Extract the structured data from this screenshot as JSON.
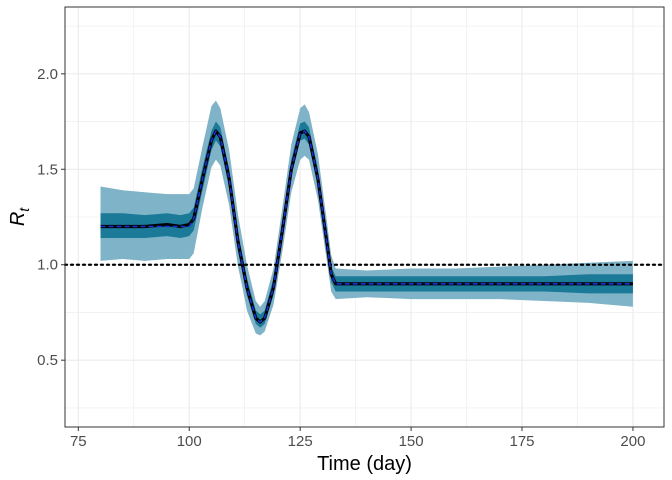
{
  "chart_data": {
    "type": "line",
    "xlabel": "Time (day)",
    "ylabel": "R",
    "ylabel_subscript": "t",
    "xlim": [
      72,
      207
    ],
    "ylim": [
      0.15,
      2.35
    ],
    "xticks": [
      75,
      100,
      125,
      150,
      175,
      200
    ],
    "yticks": [
      0.5,
      1.0,
      1.5,
      2.0
    ],
    "xtick_labels": [
      "75",
      "100",
      "125",
      "150",
      "175",
      "200"
    ],
    "ytick_labels": [
      "0.5",
      "1.0",
      "1.5",
      "2.0"
    ],
    "grid": true,
    "reference_line": {
      "y": 1.0,
      "style": "dotted",
      "color": "#000000"
    },
    "colors": {
      "outer_band": "#7fb3c8",
      "inner_band": "#1b7a98",
      "estimate_line": "#000000",
      "true_line": "#1a2fd6",
      "panel_border": "#333333",
      "grid": "#ebebeb"
    },
    "series": [
      {
        "role": "estimate_with_bands",
        "x": [
          80,
          85,
          90,
          95,
          98,
          100,
          101,
          103,
          105,
          106,
          107,
          109,
          111,
          112,
          113,
          115,
          116,
          117,
          119,
          121,
          123,
          125,
          126,
          127,
          129,
          131,
          132,
          133,
          140,
          150,
          160,
          170,
          180,
          190,
          200
        ],
        "y": [
          1.2,
          1.2,
          1.2,
          1.21,
          1.2,
          1.21,
          1.24,
          1.45,
          1.65,
          1.7,
          1.67,
          1.45,
          1.12,
          1.0,
          0.88,
          0.72,
          0.7,
          0.72,
          0.88,
          1.18,
          1.5,
          1.69,
          1.7,
          1.67,
          1.45,
          1.12,
          0.95,
          0.9,
          0.9,
          0.9,
          0.9,
          0.9,
          0.9,
          0.9,
          0.9
        ],
        "lower95": [
          1.02,
          1.03,
          1.02,
          1.03,
          1.03,
          1.03,
          1.06,
          1.3,
          1.51,
          1.55,
          1.52,
          1.31,
          0.99,
          0.88,
          0.76,
          0.64,
          0.63,
          0.65,
          0.79,
          1.07,
          1.38,
          1.55,
          1.57,
          1.55,
          1.34,
          1.02,
          0.86,
          0.82,
          0.83,
          0.82,
          0.82,
          0.82,
          0.81,
          0.8,
          0.78
        ],
        "upper95": [
          1.41,
          1.39,
          1.38,
          1.37,
          1.37,
          1.37,
          1.4,
          1.62,
          1.83,
          1.86,
          1.82,
          1.6,
          1.26,
          1.13,
          1.0,
          0.81,
          0.78,
          0.81,
          0.98,
          1.3,
          1.63,
          1.82,
          1.84,
          1.8,
          1.58,
          1.23,
          1.05,
          0.98,
          0.97,
          0.98,
          0.98,
          0.99,
          1.0,
          1.01,
          1.02
        ],
        "lower50": [
          1.14,
          1.14,
          1.14,
          1.15,
          1.14,
          1.15,
          1.18,
          1.39,
          1.6,
          1.65,
          1.62,
          1.4,
          1.07,
          0.96,
          0.84,
          0.69,
          0.67,
          0.69,
          0.84,
          1.14,
          1.46,
          1.65,
          1.66,
          1.63,
          1.41,
          1.08,
          0.91,
          0.86,
          0.86,
          0.86,
          0.86,
          0.86,
          0.86,
          0.85,
          0.85
        ],
        "upper50": [
          1.27,
          1.27,
          1.26,
          1.27,
          1.26,
          1.27,
          1.3,
          1.51,
          1.7,
          1.75,
          1.72,
          1.5,
          1.17,
          1.05,
          0.93,
          0.76,
          0.74,
          0.76,
          0.93,
          1.23,
          1.55,
          1.74,
          1.75,
          1.72,
          1.5,
          1.17,
          0.99,
          0.94,
          0.94,
          0.94,
          0.94,
          0.94,
          0.94,
          0.95,
          0.95
        ]
      },
      {
        "role": "true_value",
        "x": [
          80,
          100,
          101,
          103,
          105,
          106,
          107,
          109,
          111,
          112,
          113,
          115,
          116,
          117,
          119,
          121,
          123,
          125,
          126,
          127,
          129,
          131,
          132,
          133,
          200
        ],
        "y": [
          1.2,
          1.2,
          1.24,
          1.45,
          1.65,
          1.7,
          1.67,
          1.45,
          1.12,
          1.0,
          0.88,
          0.72,
          0.7,
          0.72,
          0.88,
          1.18,
          1.5,
          1.69,
          1.7,
          1.67,
          1.45,
          1.12,
          0.95,
          0.9,
          0.9
        ]
      }
    ]
  }
}
